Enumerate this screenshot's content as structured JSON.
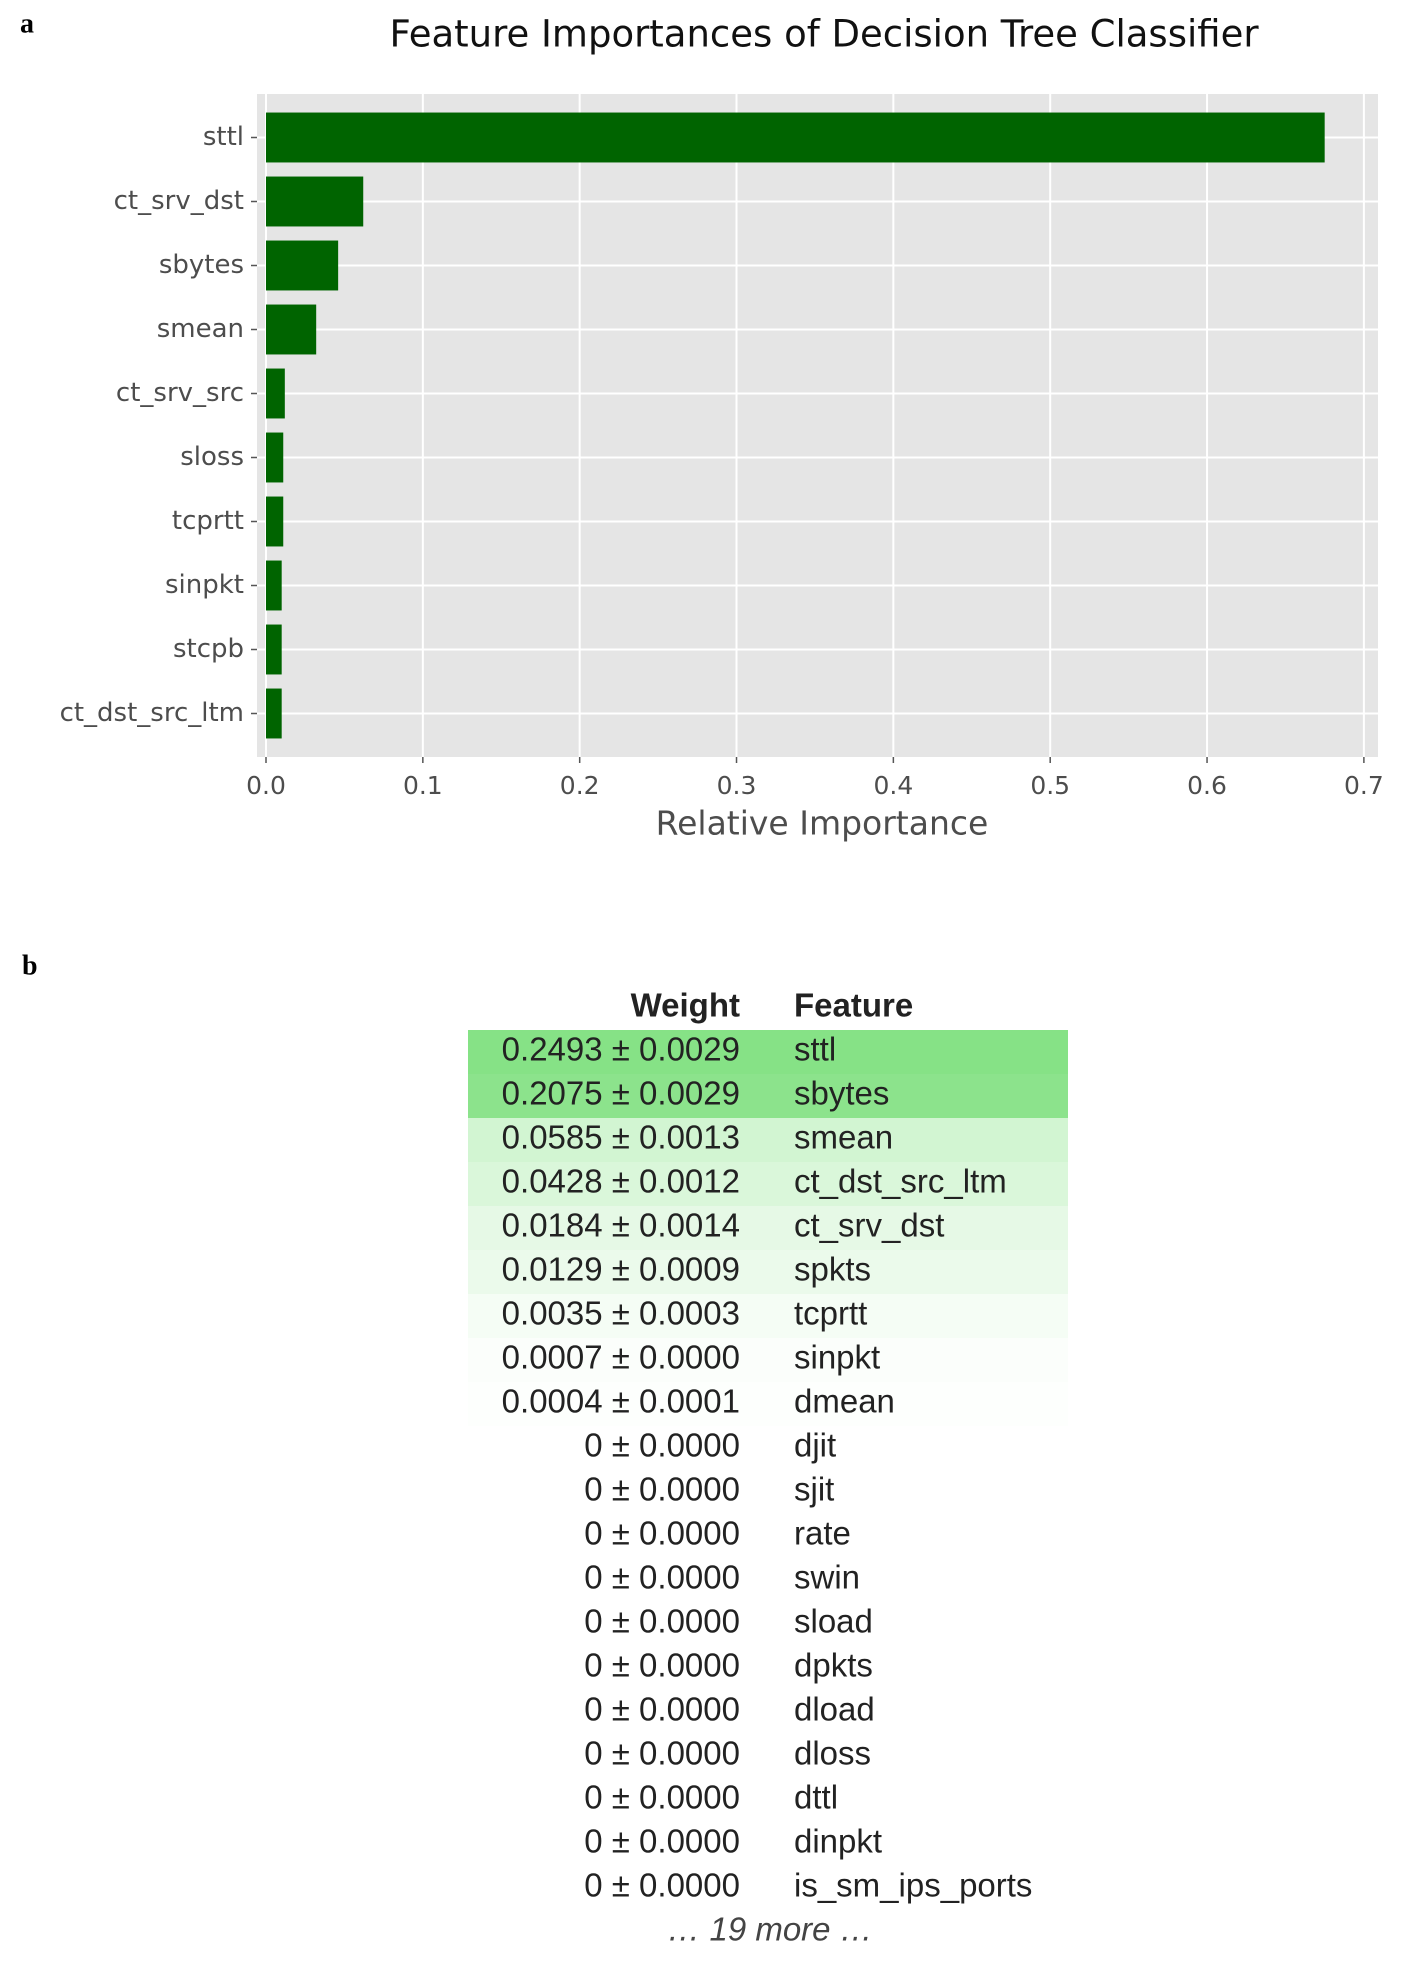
{
  "panel_labels": [
    "a",
    "b"
  ],
  "chart_data": {
    "type": "barh",
    "title": "Feature Importances of Decision Tree Classifier",
    "x_label": "Relative Importance",
    "categories": [
      "sttl",
      "ct_srv_dst",
      "sbytes",
      "smean",
      "ct_srv_src",
      "sloss",
      "tcprtt",
      "sinpkt",
      "stcpb",
      "ct_dst_src_ltm"
    ],
    "values": [
      0.675,
      0.062,
      0.046,
      0.032,
      0.012,
      0.011,
      0.011,
      0.01,
      0.01,
      0.01
    ],
    "color": "#006400",
    "xlim": [
      0,
      0.709
    ],
    "xticks": [
      {
        "value": 0,
        "label": "0.0"
      },
      0.1,
      0.2,
      0.3,
      0.4,
      0.5,
      0.6,
      0.7
    ],
    "grid": true
  },
  "table": {
    "headers": [
      "Weight",
      "Feature"
    ],
    "rows": [
      {
        "weight": "0.2493 ± 0.0029",
        "feature": "sttl",
        "background": "#86e286"
      },
      {
        "weight": "0.2075 ± 0.0029",
        "feature": "sbytes",
        "background": "#8ce38c"
      },
      {
        "weight": "0.0585 ± 0.0013",
        "feature": "smean",
        "background": "#d2f5d2"
      },
      {
        "weight": "0.0428 ± 0.0012",
        "feature": "ct_dst_src_ltm",
        "background": "#daf7da"
      },
      {
        "weight": "0.0184 ± 0.0014",
        "feature": "ct_srv_dst",
        "background": "#e6f9e6"
      },
      {
        "weight": "0.0129 ± 0.0009",
        "feature": "spkts",
        "background": "#ebfaeb"
      },
      {
        "weight": "0.0035 ± 0.0003",
        "feature": "tcprtt",
        "background": "#f5fdf5"
      },
      {
        "weight": "0.0007 ± 0.0000",
        "feature": "sinpkt",
        "background": "#fbfefb"
      },
      {
        "weight": "0.0004 ± 0.0001",
        "feature": "dmean",
        "background": "#fdfffd"
      },
      {
        "weight": "0 ± 0.0000",
        "feature": "djit"
      },
      {
        "weight": "0 ± 0.0000",
        "feature": "sjit"
      },
      {
        "weight": "0 ± 0.0000",
        "feature": "rate"
      },
      {
        "weight": "0 ± 0.0000",
        "feature": "swin"
      },
      {
        "weight": "0 ± 0.0000",
        "feature": "sload"
      },
      {
        "weight": "0 ± 0.0000",
        "feature": "dpkts"
      },
      {
        "weight": "0 ± 0.0000",
        "feature": "dload"
      },
      {
        "weight": "0 ± 0.0000",
        "feature": "dloss"
      },
      {
        "weight": "0 ± 0.0000",
        "feature": "dttl"
      },
      {
        "weight": "0 ± 0.0000",
        "feature": "dinpkt"
      },
      {
        "weight": "0 ± 0.0000",
        "feature": "is_sm_ips_ports"
      }
    ],
    "footer": "… 19 more …"
  }
}
